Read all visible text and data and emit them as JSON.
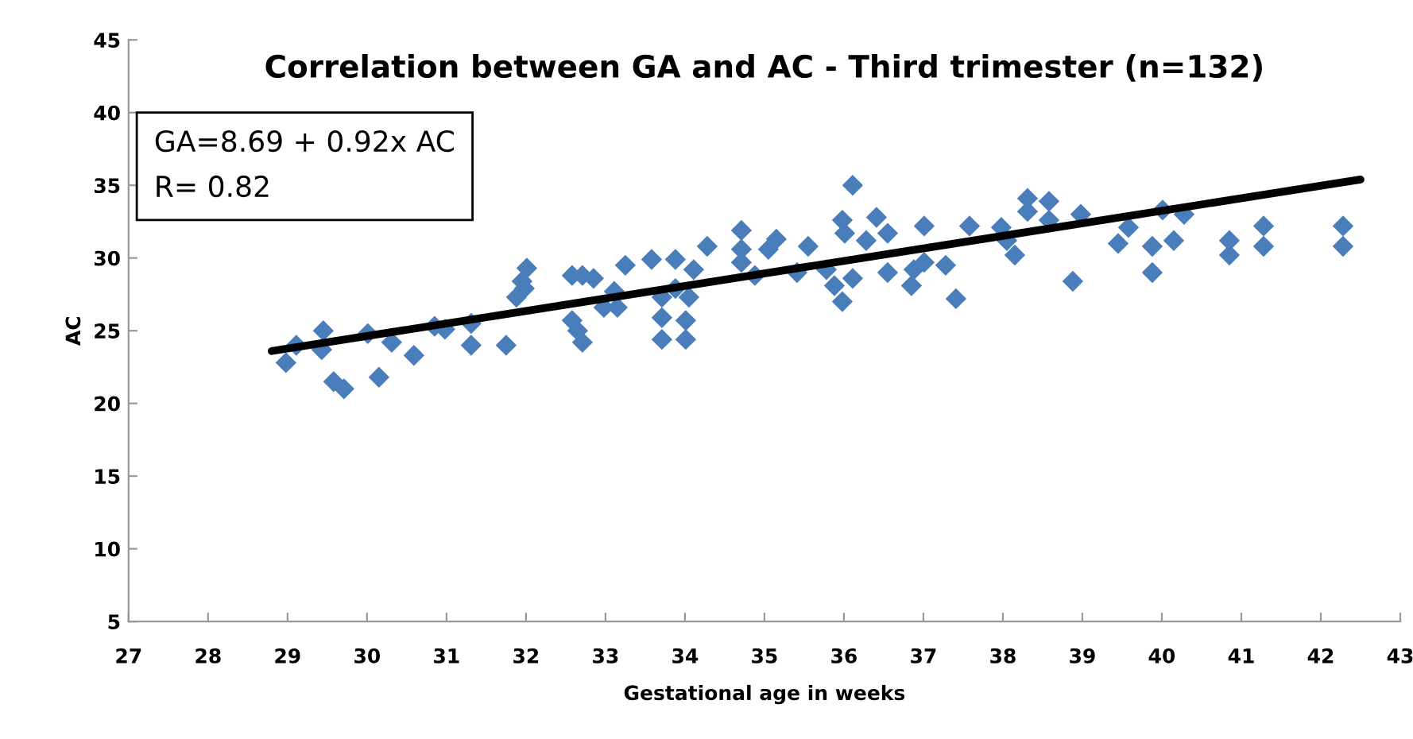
{
  "chart_data": {
    "type": "scatter",
    "title": "Correlation between GA and AC - Third trimester (n=132)",
    "xlabel": "Gestational age in weeks",
    "ylabel": "AC",
    "annotations": [
      "GA=8.69 + 0.92x AC\nR= 0.82"
    ],
    "xlim": [
      27,
      43
    ],
    "xticks": [
      27,
      28,
      29,
      30,
      31,
      32,
      33,
      34,
      35,
      36,
      37,
      38,
      39,
      40,
      41,
      42,
      43
    ],
    "ylim": [
      5,
      45
    ],
    "yticks": [
      5,
      10,
      15,
      20,
      25,
      30,
      35,
      40,
      45
    ],
    "grid": false,
    "legend": false,
    "marker": "diamond",
    "series": [
      {
        "color": "#4a7ebb",
        "x": [
          28.98,
          29.11,
          29.45,
          29.43,
          29.58,
          29.71,
          30.01,
          30.15,
          30.31,
          30.59,
          30.85,
          30.98,
          31.31,
          31.31,
          31.75,
          31.88,
          31.95,
          32.01,
          31.98,
          32.58,
          32.71,
          32.85,
          32.58,
          32.65,
          32.71,
          32.98,
          33.11,
          33.25,
          33.15,
          33.58,
          33.71,
          33.71,
          33.71,
          33.88,
          33.88,
          34.01,
          34.01,
          34.05,
          34.11,
          34.28,
          34.71,
          34.71,
          34.71,
          34.88,
          35.05,
          35.15,
          35.41,
          35.55,
          35.78,
          35.88,
          35.98,
          35.98,
          36.01,
          36.11,
          36.11,
          36.28,
          36.41,
          36.55,
          36.55,
          36.85,
          36.88,
          37.01,
          37.01,
          37.28,
          37.41,
          37.58,
          37.98,
          38.05,
          38.15,
          38.31,
          38.31,
          38.58,
          38.58,
          38.88,
          38.98,
          39.45,
          39.58,
          39.88,
          39.88,
          40.01,
          40.15,
          40.28,
          40.85,
          40.85,
          41.28,
          41.28,
          42.28,
          42.28
        ],
        "values": [
          22.8,
          24.0,
          25.0,
          23.7,
          21.5,
          21.0,
          24.8,
          21.8,
          24.2,
          23.3,
          25.3,
          25.1,
          24.0,
          25.5,
          24.0,
          27.3,
          28.4,
          29.3,
          27.9,
          28.8,
          28.8,
          28.6,
          25.7,
          25.0,
          24.2,
          26.6,
          27.7,
          29.5,
          26.6,
          29.9,
          27.3,
          25.9,
          24.4,
          29.9,
          27.9,
          25.7,
          24.4,
          27.3,
          29.2,
          30.8,
          31.9,
          30.6,
          29.7,
          28.8,
          30.6,
          31.3,
          29.0,
          30.8,
          29.2,
          28.1,
          27.0,
          32.6,
          31.7,
          35.0,
          28.6,
          31.2,
          32.8,
          31.7,
          29.0,
          28.1,
          29.2,
          32.2,
          29.7,
          29.5,
          27.2,
          32.2,
          32.1,
          31.2,
          30.2,
          34.1,
          33.2,
          33.9,
          32.6,
          28.4,
          33.0,
          31.0,
          32.1,
          30.8,
          29.0,
          33.3,
          31.2,
          33.0,
          31.2,
          30.2,
          32.2,
          30.8,
          32.2,
          30.8
        ]
      },
      {
        "type": "line",
        "color": "#000000",
        "marker": "none",
        "line_style": "solid",
        "x": [
          28.8,
          42.5
        ],
        "values": [
          23.6,
          35.4
        ]
      }
    ]
  }
}
